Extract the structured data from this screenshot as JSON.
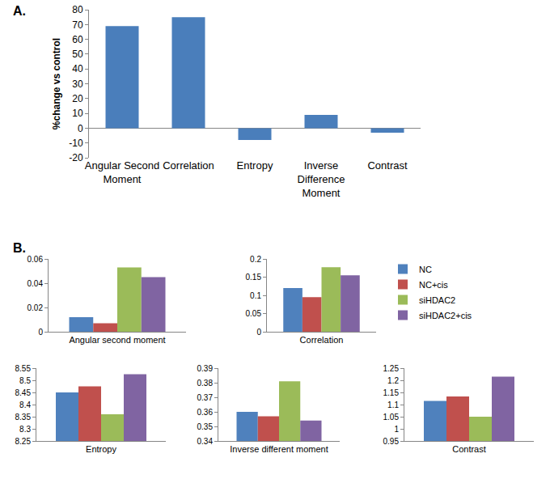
{
  "chart_data": [
    {
      "type": "bar",
      "title": "A.",
      "categories": [
        "Angular Second Moment",
        "Correlation",
        "Entropy",
        "Inverse Difference Moment",
        "Contrast"
      ],
      "values": [
        69,
        75,
        -8,
        9,
        -3
      ],
      "color": "#4a7ebb",
      "ylabel": "%change vs control",
      "ylim": [
        -20,
        80
      ],
      "yticks": [
        -20,
        -10,
        0,
        10,
        20,
        30,
        40,
        50,
        60,
        70,
        80
      ],
      "grid": false
    },
    {
      "type": "bar",
      "title": "B.",
      "categories": [
        "Angular second moment"
      ],
      "series": [
        {
          "name": "NC",
          "color": "#4f81bd",
          "values": [
            0.012
          ]
        },
        {
          "name": "NC+cis",
          "color": "#c0504d",
          "values": [
            0.007
          ]
        },
        {
          "name": "siHDAC2",
          "color": "#9bbb59",
          "values": [
            0.053
          ]
        },
        {
          "name": "siHDAC2+cis",
          "color": "#8064a2",
          "values": [
            0.045
          ]
        }
      ],
      "ylim": [
        0,
        0.06
      ],
      "yticks": [
        0,
        0.02,
        0.04,
        0.06
      ],
      "grid": false,
      "legend": "right"
    },
    {
      "type": "bar",
      "categories": [
        "Correlation"
      ],
      "series": [
        {
          "name": "NC",
          "color": "#4f81bd",
          "values": [
            0.12
          ]
        },
        {
          "name": "NC+cis",
          "color": "#c0504d",
          "values": [
            0.095
          ]
        },
        {
          "name": "siHDAC2",
          "color": "#9bbb59",
          "values": [
            0.177
          ]
        },
        {
          "name": "siHDAC2+cis",
          "color": "#8064a2",
          "values": [
            0.155
          ]
        }
      ],
      "ylim": [
        0,
        0.2
      ],
      "yticks": [
        0,
        0.05,
        0.1,
        0.15,
        0.2
      ],
      "grid": false
    },
    {
      "type": "bar",
      "categories": [
        "Entropy"
      ],
      "series": [
        {
          "name": "NC",
          "color": "#4f81bd",
          "values": [
            8.45
          ]
        },
        {
          "name": "NC+cis",
          "color": "#c0504d",
          "values": [
            8.475
          ]
        },
        {
          "name": "siHDAC2",
          "color": "#9bbb59",
          "values": [
            8.36
          ]
        },
        {
          "name": "siHDAC2+cis",
          "color": "#8064a2",
          "values": [
            8.525
          ]
        }
      ],
      "ylim": [
        8.25,
        8.55
      ],
      "yticks": [
        8.25,
        8.3,
        8.35,
        8.4,
        8.45,
        8.5,
        8.55
      ],
      "grid": false
    },
    {
      "type": "bar",
      "categories": [
        "Inverse different moment"
      ],
      "series": [
        {
          "name": "NC",
          "color": "#4f81bd",
          "values": [
            0.36
          ]
        },
        {
          "name": "NC+cis",
          "color": "#c0504d",
          "values": [
            0.357
          ]
        },
        {
          "name": "siHDAC2",
          "color": "#9bbb59",
          "values": [
            0.381
          ]
        },
        {
          "name": "siHDAC2+cis",
          "color": "#8064a2",
          "values": [
            0.354
          ]
        }
      ],
      "ylim": [
        0.34,
        0.39
      ],
      "yticks": [
        0.34,
        0.35,
        0.36,
        0.37,
        0.38,
        0.39
      ],
      "grid": false
    },
    {
      "type": "bar",
      "categories": [
        "Contrast"
      ],
      "series": [
        {
          "name": "NC",
          "color": "#4f81bd",
          "values": [
            1.115
          ]
        },
        {
          "name": "NC+cis",
          "color": "#c0504d",
          "values": [
            1.133
          ]
        },
        {
          "name": "siHDAC2",
          "color": "#9bbb59",
          "values": [
            1.05
          ]
        },
        {
          "name": "siHDAC2+cis",
          "color": "#8064a2",
          "values": [
            1.215
          ]
        }
      ],
      "ylim": [
        0.95,
        1.25
      ],
      "yticks": [
        0.95,
        1,
        1.05,
        1.1,
        1.15,
        1.2,
        1.25
      ],
      "grid": false
    }
  ]
}
